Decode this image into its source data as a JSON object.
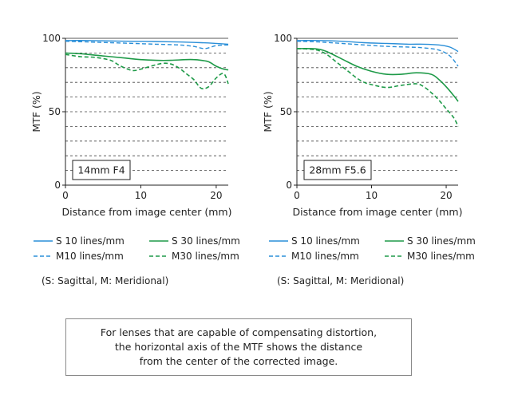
{
  "colors": {
    "s10": "#2a8fd8",
    "m10": "#2a8fd8",
    "s30": "#1e9a48",
    "m30": "#1e9a48",
    "text": "#222222"
  },
  "chart_data": [
    {
      "type": "line",
      "inset_label": "14mm F4",
      "xlabel": "Distance from image center (mm)",
      "ylabel": "MTF (%)",
      "xlim": [
        0,
        21.6
      ],
      "ylim": [
        0,
        100
      ],
      "xticks": [
        0,
        10,
        20
      ],
      "yticks": [
        0,
        50,
        100
      ],
      "grid": "horizontal dashed every 10",
      "series": [
        {
          "name": "S 10 lines/mm",
          "key": "s10",
          "style": "solid",
          "x": [
            0,
            3,
            6,
            9,
            12,
            15,
            18,
            20,
            21.6
          ],
          "y": [
            98.5,
            98.5,
            98.2,
            98,
            97.8,
            97.5,
            97,
            96.5,
            96
          ]
        },
        {
          "name": "M10 lines/mm",
          "key": "m10",
          "style": "dashed",
          "x": [
            0,
            3,
            6,
            9,
            12,
            15,
            17,
            18.5,
            20,
            21.6
          ],
          "y": [
            98,
            97.5,
            97,
            96.5,
            96,
            95.5,
            94.5,
            93,
            95,
            95.5
          ]
        },
        {
          "name": "S 30 lines/mm",
          "key": "s30",
          "style": "solid",
          "x": [
            0,
            2,
            4,
            6,
            8,
            10,
            12,
            14,
            16,
            17,
            18,
            19,
            20,
            21,
            21.6
          ],
          "y": [
            90,
            89.5,
            88.5,
            87.5,
            86.5,
            85.5,
            85,
            85,
            85.5,
            85.5,
            85,
            84,
            81,
            79,
            78.5
          ]
        },
        {
          "name": "M30 lines/mm",
          "key": "m30",
          "style": "dashed",
          "x": [
            0,
            2,
            4,
            6,
            7,
            8,
            9,
            10,
            11,
            12,
            13,
            14,
            15,
            16,
            17,
            18,
            19,
            20,
            21,
            21.6
          ],
          "y": [
            89,
            87.5,
            87,
            85,
            82,
            79.5,
            78,
            79,
            80.5,
            82,
            83,
            82.5,
            80,
            76,
            72,
            66,
            67,
            73,
            76,
            69
          ]
        }
      ]
    },
    {
      "type": "line",
      "inset_label": "28mm F5.6",
      "xlabel": "Distance from image center (mm)",
      "ylabel": "MTF (%)",
      "xlim": [
        0,
        21.6
      ],
      "ylim": [
        0,
        100
      ],
      "xticks": [
        0,
        10,
        20
      ],
      "yticks": [
        0,
        50,
        100
      ],
      "grid": "horizontal dashed every 10",
      "series": [
        {
          "name": "S 10 lines/mm",
          "key": "s10",
          "style": "solid",
          "x": [
            0,
            3,
            6,
            9,
            12,
            15,
            17,
            19,
            20.5,
            21.6
          ],
          "y": [
            98.5,
            98.5,
            98,
            97,
            96.5,
            96,
            96,
            95.5,
            94,
            91
          ]
        },
        {
          "name": "M10 lines/mm",
          "key": "m10",
          "style": "dashed",
          "x": [
            0,
            3,
            6,
            9,
            12,
            15,
            17,
            19,
            20.5,
            21.6
          ],
          "y": [
            98,
            97.5,
            96.5,
            95.5,
            94.5,
            94,
            93.5,
            92,
            88,
            81
          ]
        },
        {
          "name": "S 30 lines/mm",
          "key": "s30",
          "style": "solid",
          "x": [
            0,
            2,
            3,
            4,
            6,
            8,
            10,
            12,
            14,
            16,
            18,
            19,
            20,
            21,
            21.6
          ],
          "y": [
            93,
            93,
            92.5,
            91,
            86,
            81,
            77.5,
            75.5,
            75.5,
            76.5,
            75.5,
            72,
            67,
            61,
            57
          ]
        },
        {
          "name": "M30 lines/mm",
          "key": "m30",
          "style": "dashed",
          "x": [
            0,
            2,
            3,
            4,
            5,
            6,
            7,
            8,
            9,
            10,
            12,
            14,
            16,
            17,
            18,
            19,
            20,
            21,
            21.6
          ],
          "y": [
            93,
            92.5,
            91.5,
            89,
            85,
            81,
            77,
            73,
            70,
            68.5,
            66.5,
            68,
            69,
            67,
            63,
            58,
            52,
            46,
            40
          ]
        }
      ]
    }
  ],
  "legend": {
    "s10": "S 10 lines/mm",
    "s30": "S 30 lines/mm",
    "m10": "M10 lines/mm",
    "m30": "M30 lines/mm",
    "note": "(S: Sagittal, M: Meridional)"
  },
  "footnote": "For lenses that are capable of compensating distortion,\nthe horizontal axis of the MTF shows the distance\nfrom the center of the corrected image."
}
